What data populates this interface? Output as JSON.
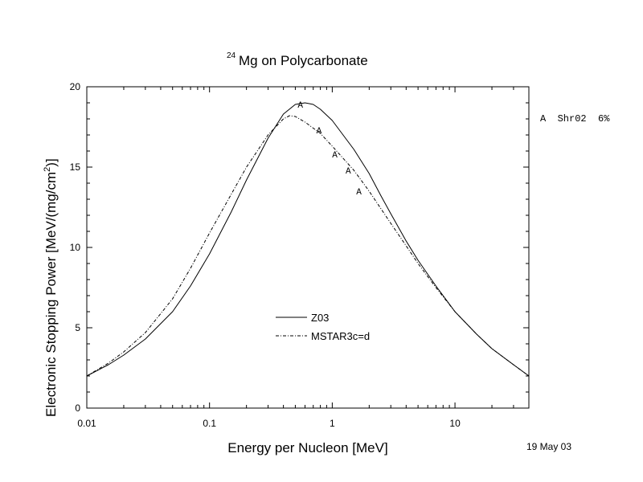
{
  "chart_data": {
    "type": "line",
    "title_sup": "24",
    "title_main": "Mg on Polycarbonate",
    "xlabel": "Energy per Nucleon [MeV]",
    "ylabel_main": "Electronic Stopping Power [MeV/(mg/cm",
    "ylabel_sup": "2",
    "ylabel_end": ")]",
    "xscale": "log",
    "xlim": [
      0.01,
      40
    ],
    "ylim": [
      0,
      20
    ],
    "x_ticks": [
      {
        "v": 0.01,
        "label": "0.01"
      },
      {
        "v": 0.1,
        "label": "0.1"
      },
      {
        "v": 1,
        "label": "1"
      },
      {
        "v": 10,
        "label": "10"
      }
    ],
    "y_ticks": [
      {
        "v": 0,
        "label": "0"
      },
      {
        "v": 5,
        "label": "5"
      },
      {
        "v": 10,
        "label": "10"
      },
      {
        "v": 15,
        "label": "15"
      },
      {
        "v": 20,
        "label": "20"
      }
    ],
    "series": [
      {
        "name": "Z03",
        "style": "solid",
        "points": [
          [
            0.01,
            2.0
          ],
          [
            0.015,
            2.7
          ],
          [
            0.02,
            3.3
          ],
          [
            0.03,
            4.3
          ],
          [
            0.05,
            6.0
          ],
          [
            0.07,
            7.6
          ],
          [
            0.1,
            9.6
          ],
          [
            0.15,
            12.2
          ],
          [
            0.2,
            14.2
          ],
          [
            0.3,
            16.8
          ],
          [
            0.4,
            18.3
          ],
          [
            0.5,
            18.9
          ],
          [
            0.6,
            19.0
          ],
          [
            0.7,
            18.9
          ],
          [
            0.8,
            18.6
          ],
          [
            1.0,
            17.9
          ],
          [
            1.5,
            16.1
          ],
          [
            2.0,
            14.6
          ],
          [
            2.5,
            13.2
          ],
          [
            3.0,
            12.1
          ],
          [
            4.0,
            10.4
          ],
          [
            5.0,
            9.2
          ],
          [
            7.0,
            7.6
          ],
          [
            10,
            6.0
          ],
          [
            15,
            4.6
          ],
          [
            20,
            3.7
          ],
          [
            30,
            2.7
          ],
          [
            40,
            2.0
          ]
        ]
      },
      {
        "name": "MSTAR3c=d",
        "style": "dashdot",
        "points": [
          [
            0.01,
            2.0
          ],
          [
            0.015,
            2.8
          ],
          [
            0.02,
            3.5
          ],
          [
            0.03,
            4.7
          ],
          [
            0.05,
            6.8
          ],
          [
            0.07,
            8.7
          ],
          [
            0.1,
            10.9
          ],
          [
            0.15,
            13.3
          ],
          [
            0.2,
            15.0
          ],
          [
            0.3,
            17.0
          ],
          [
            0.4,
            18.0
          ],
          [
            0.45,
            18.2
          ],
          [
            0.5,
            18.15
          ],
          [
            0.6,
            17.8
          ],
          [
            0.8,
            17.1
          ],
          [
            1.0,
            16.3
          ],
          [
            1.5,
            14.8
          ],
          [
            2.0,
            13.5
          ],
          [
            2.5,
            12.4
          ],
          [
            3.0,
            11.5
          ],
          [
            4.0,
            10.1
          ],
          [
            5.0,
            9.0
          ],
          [
            7.0,
            7.5
          ],
          [
            10,
            6.0
          ],
          [
            15,
            4.6
          ],
          [
            20,
            3.7
          ],
          [
            30,
            2.7
          ],
          [
            40,
            2.0
          ]
        ]
      }
    ],
    "markers": {
      "symbol": "A",
      "points": [
        [
          0.55,
          18.9
        ],
        [
          0.78,
          17.3
        ],
        [
          1.05,
          15.8
        ],
        [
          1.35,
          14.8
        ],
        [
          1.65,
          13.5
        ]
      ]
    },
    "markers_legend": "A  Shr02  6%",
    "date_note": "19 May 03",
    "legend_position": "center-bottom"
  }
}
